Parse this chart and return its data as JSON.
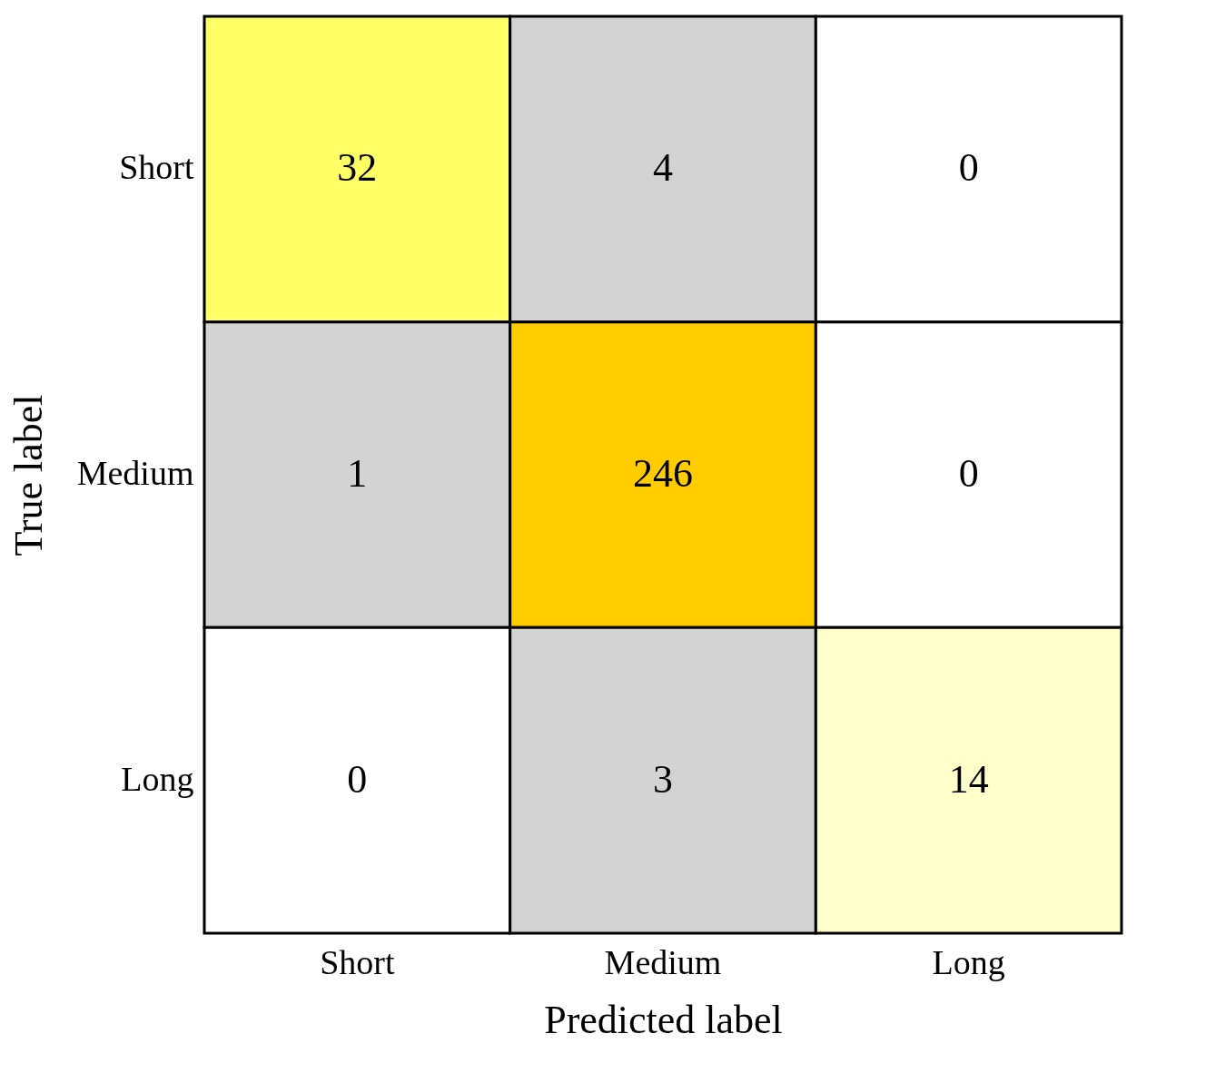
{
  "chart_data": {
    "type": "heatmap",
    "xlabel": "Predicted label",
    "ylabel": "True label",
    "categories": [
      "Short",
      "Medium",
      "Long"
    ],
    "y_categories": [
      "Short",
      "Medium",
      "Long"
    ],
    "cells": [
      [
        32,
        4,
        0
      ],
      [
        1,
        246,
        0
      ],
      [
        0,
        3,
        14
      ]
    ],
    "colors": [
      [
        "#ffff66",
        "#d3d3d3",
        "#ffffff"
      ],
      [
        "#d3d3d3",
        "#ffcc00",
        "#ffffff"
      ],
      [
        "#ffffff",
        "#d3d3d3",
        "#ffffcc"
      ]
    ],
    "data_labels": true
  }
}
